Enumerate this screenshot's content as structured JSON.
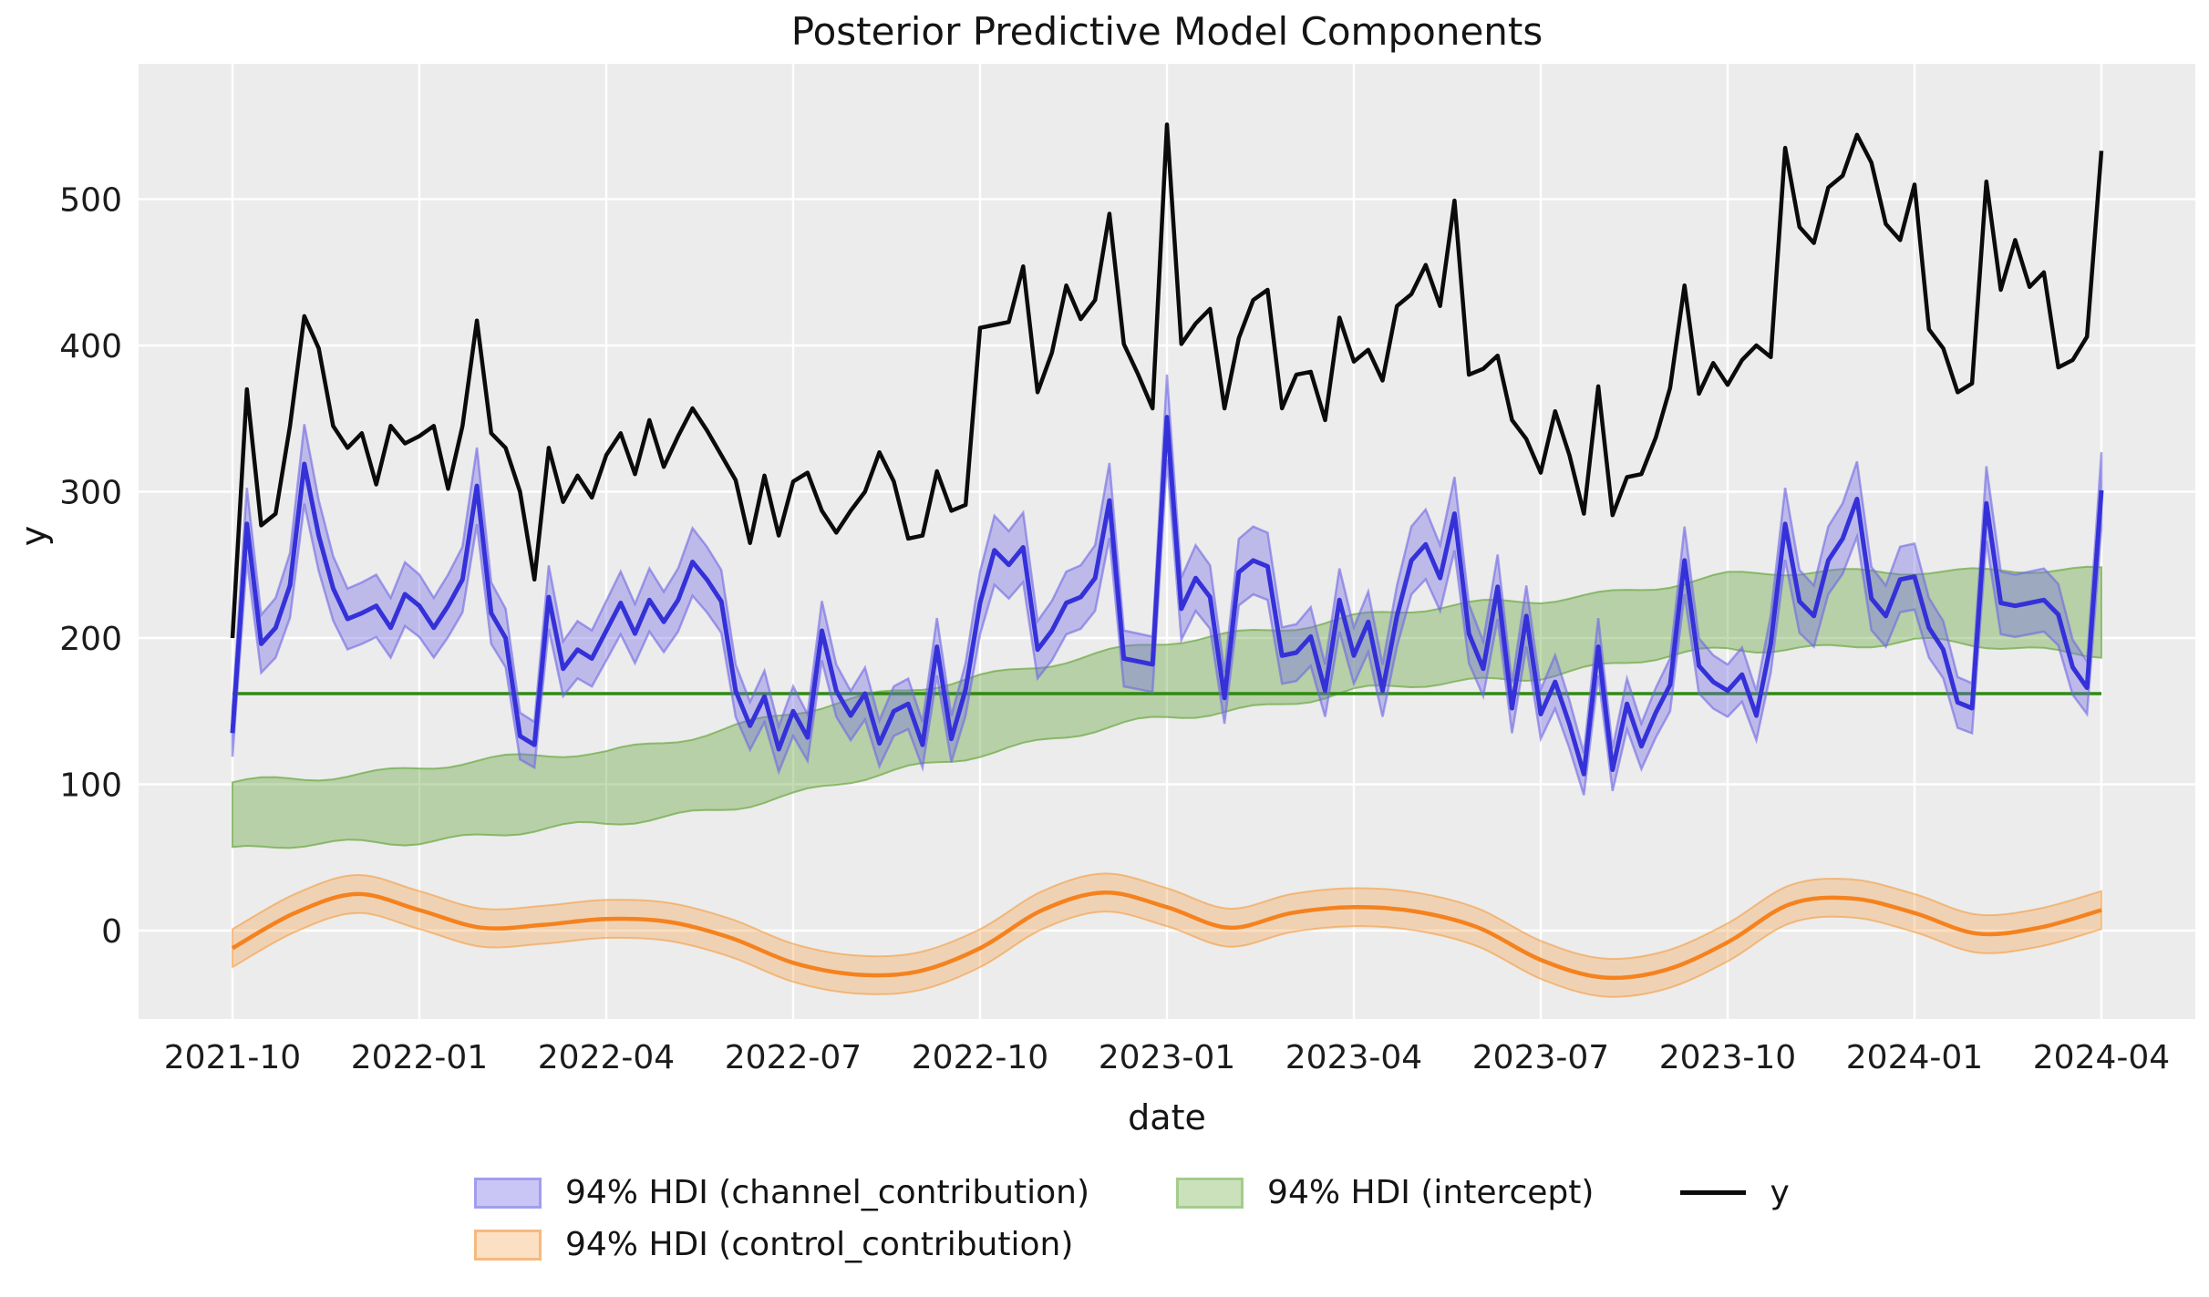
{
  "figure": {
    "title": "Posterior Predictive Model Components",
    "xlabel": "date",
    "ylabel": "y"
  },
  "legend": {
    "channel": "94% HDI (channel_contribution)",
    "control": "94% HDI (control_contribution)",
    "intercept": "94% HDI (intercept)",
    "y": "y"
  },
  "colors": {
    "y_line": "#0b0b0b",
    "channel_line": "#3531d8",
    "channel_band": "#7068e4",
    "intercept_line": "#2e8b11",
    "intercept_band": "#6aa840",
    "control_line": "#f5821e",
    "control_band": "#f69632",
    "plot_bg": "#ececec",
    "gridline": "#ffffff",
    "channel_swatch_bg": "#c9c6f5",
    "channel_swatch_border": "#a29dee",
    "intercept_swatch_bg": "#cbe1bc",
    "intercept_swatch_border": "#a3cc8c",
    "control_swatch_bg": "#fce0c4",
    "control_swatch_border": "#f6b97f",
    "text": "#141414",
    "tick_text": "#1c1c1c"
  },
  "chart_data": {
    "type": "line",
    "title": "Posterior Predictive Model Components",
    "xlabel": "date",
    "ylabel": "y",
    "grid": true,
    "legend_position": "bottom",
    "x_tick_labels": [
      "2021-10",
      "2022-01",
      "2022-04",
      "2022-07",
      "2022-10",
      "2023-01",
      "2023-04",
      "2023-07",
      "2023-10",
      "2024-01",
      "2024-04"
    ],
    "y_ticks": [
      0,
      100,
      200,
      300,
      400,
      500
    ],
    "ylim": [
      -60,
      592
    ],
    "sampling_note": "weekly observations; 131 points; first point at the 2021-10 tick, 13 points per quarter, last point at the 2024-04 tick",
    "series": [
      {
        "name": "y",
        "kind": "line",
        "color_key": "y_line",
        "values": [
          200,
          370,
          277,
          285,
          345,
          420,
          398,
          345,
          330,
          340,
          305,
          345,
          333,
          338,
          345,
          302,
          345,
          417,
          340,
          330,
          300,
          240,
          330,
          293,
          311,
          296,
          325,
          340,
          312,
          349,
          317,
          338,
          357,
          342,
          325,
          308,
          265,
          311,
          270,
          307,
          313,
          287,
          272,
          287,
          300,
          327,
          307,
          268,
          270,
          314,
          287,
          291,
          412,
          414,
          416,
          454,
          368,
          395,
          441,
          418,
          431,
          490,
          401,
          380,
          357,
          551,
          401,
          415,
          425,
          357,
          405,
          431,
          438,
          357,
          380,
          382,
          349,
          419,
          389,
          397,
          376,
          427,
          435,
          455,
          427,
          499,
          380,
          384,
          393,
          349,
          336,
          313,
          355,
          325,
          285,
          372,
          284,
          310,
          312,
          337,
          371,
          441,
          367,
          388,
          373,
          390,
          400,
          392,
          535,
          481,
          470,
          508,
          516,
          544,
          525,
          483,
          472,
          510,
          411,
          398,
          368,
          374,
          512,
          438,
          472,
          440,
          450,
          385,
          390,
          406,
          533
        ]
      },
      {
        "name": "channel_contribution",
        "kind": "line_with_hdi_band",
        "color_key": "channel_line",
        "band_color_key": "channel_band",
        "hdi_halfwidth_base": 8,
        "hdi_halfwidth_per_unit": 0.06,
        "mean": [
          135,
          278,
          196,
          207,
          236,
          319,
          270,
          234,
          213,
          217,
          222,
          207,
          230,
          222,
          207,
          222,
          240,
          304,
          217,
          200,
          133,
          127,
          228,
          179,
          192,
          186,
          205,
          224,
          203,
          226,
          211,
          226,
          252,
          240,
          225,
          164,
          140,
          160,
          124,
          150,
          132,
          205,
          164,
          147,
          162,
          128,
          150,
          155,
          127,
          194,
          131,
          165,
          224,
          260,
          250,
          262,
          192,
          205,
          224,
          228,
          241,
          294,
          186,
          184,
          182,
          351,
          220,
          241,
          228,
          159,
          245,
          253,
          249,
          188,
          190,
          201,
          164,
          226,
          188,
          211,
          164,
          215,
          253,
          264,
          241,
          285,
          203,
          179,
          235,
          152,
          215,
          148,
          170,
          141,
          107,
          194,
          110,
          155,
          126,
          149,
          168,
          253,
          181,
          170,
          164,
          175,
          147,
          196,
          278,
          225,
          215,
          253,
          268,
          295,
          227,
          215,
          240,
          242,
          207,
          192,
          156,
          152,
          292,
          224,
          222,
          224,
          226,
          216,
          180,
          166,
          301
        ]
      },
      {
        "name": "intercept",
        "kind": "hline_with_hdi_band",
        "color_key": "intercept_line",
        "band_color_key": "intercept_band",
        "line_value": 162,
        "band_knots_at_x_ticks": [
          "2021-10",
          "2022-01",
          "2022-04",
          "2022-07",
          "2022-10",
          "2023-01",
          "2023-04",
          "2023-07",
          "2023-10",
          "2024-01",
          "2024-04"
        ],
        "band_lower": [
          55,
          62,
          72,
          92,
          122,
          145,
          163,
          175,
          192,
          197,
          190
        ],
        "band_upper": [
          100,
          112,
          122,
          148,
          175,
          196,
          215,
          226,
          242,
          247,
          245
        ]
      },
      {
        "name": "control_contribution",
        "kind": "smooth_line_with_hdi_band",
        "color_key": "control_line",
        "band_color_key": "control_band",
        "hdi_halfwidth": 13,
        "knot_spacing": "monthly",
        "mean_monthly": [
          -12,
          12,
          25,
          14,
          2,
          4,
          8,
          6,
          -5,
          -22,
          -30,
          -28,
          -12,
          14,
          26,
          16,
          2,
          12,
          16,
          13,
          2,
          -20,
          -32,
          -27,
          -8,
          18,
          22,
          12,
          -2,
          2,
          14
        ]
      }
    ]
  }
}
